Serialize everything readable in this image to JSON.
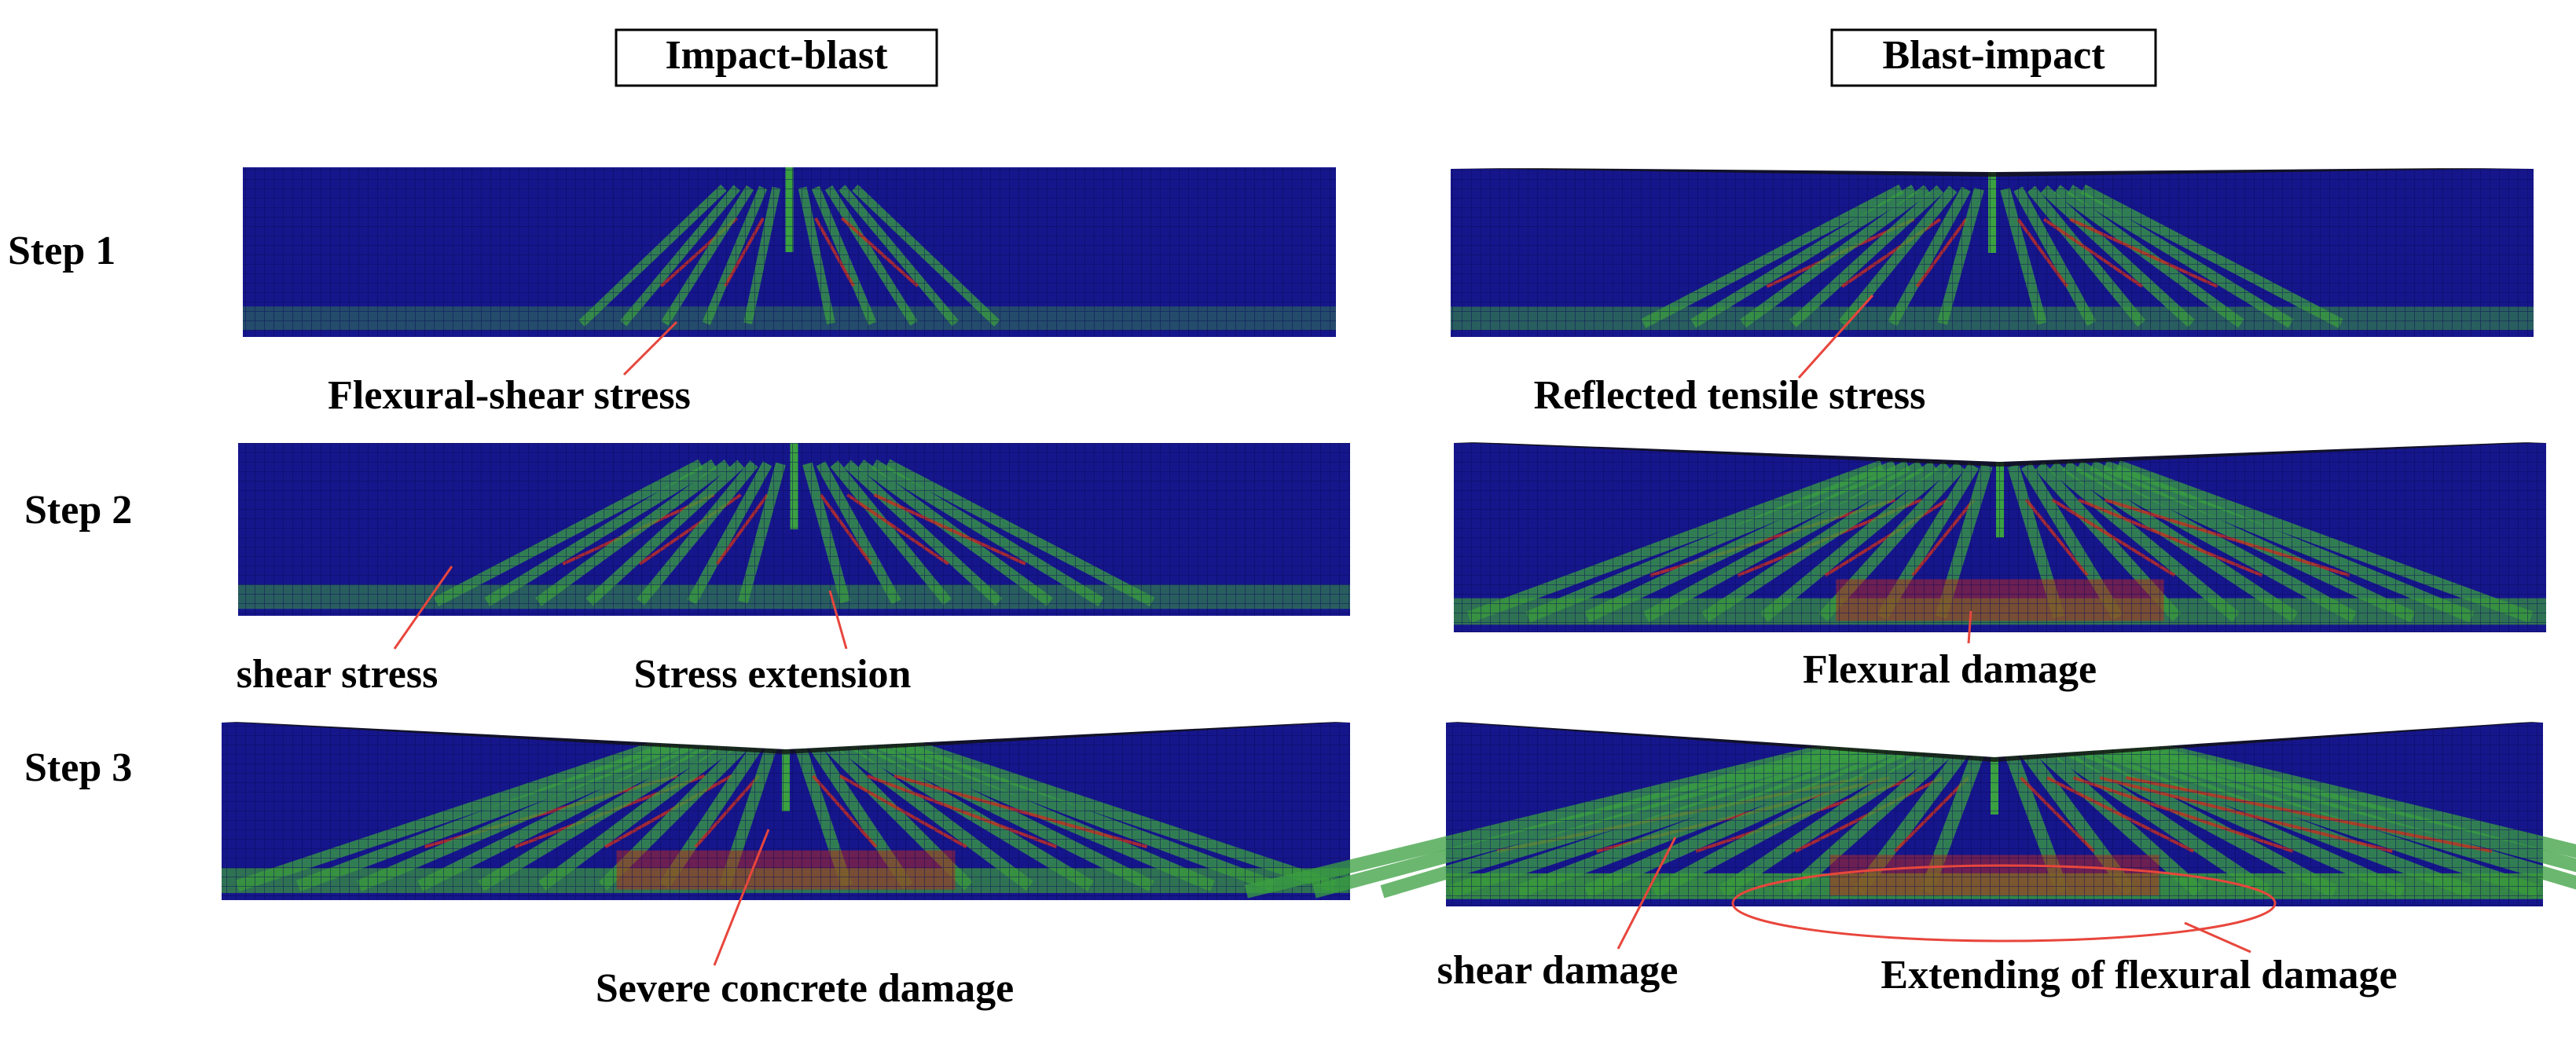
{
  "headers": [
    "Impact-blast",
    "Blast-impact"
  ],
  "steps": [
    "Step 1",
    "Step 2",
    "Step 3"
  ],
  "annotations": [
    "Flexural-shear stress",
    "Reflected tensile stress",
    "shear stress",
    "Stress extension",
    "Flexural damage",
    "Severe concrete damage",
    "shear damage",
    "Extending of flexural damage"
  ]
}
